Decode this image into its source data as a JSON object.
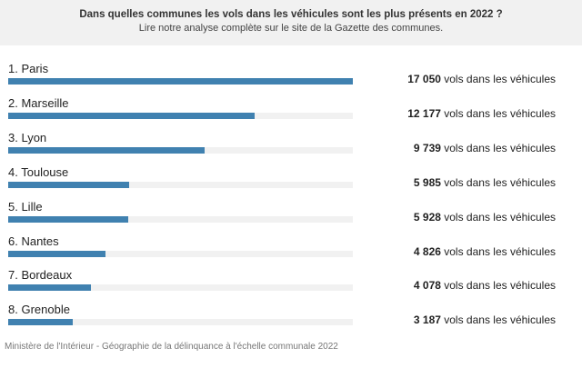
{
  "header": {
    "title": "Dans quelles communes les vols dans les véhicules sont les plus présents en 2022 ?",
    "subtitle": "Lire notre analyse complète sur le site de la Gazette des communes."
  },
  "chart_data": {
    "type": "bar",
    "orientation": "horizontal",
    "title": "Dans quelles communes les vols dans les véhicules sont les plus présents en 2022 ?",
    "categories": [
      "1. Paris",
      "2. Marseille",
      "3. Lyon",
      "4. Toulouse",
      "5. Lille",
      "6. Nantes",
      "7. Bordeaux",
      "8. Grenoble"
    ],
    "values": [
      17050,
      12177,
      9739,
      5985,
      5928,
      4826,
      4078,
      3187
    ],
    "value_labels": [
      "17 050",
      "12 177",
      "9 739",
      "5 985",
      "5 928",
      "4 826",
      "4 078",
      "3 187"
    ],
    "unit_label": "vols dans les véhicules",
    "xlim": [
      0,
      17050
    ],
    "bar_color": "#4081b0",
    "track_color": "#f1f1f1"
  },
  "footer": {
    "source": "Ministère de l'Intérieur - Géographie de la délinquance à l'échelle communale 2022"
  }
}
